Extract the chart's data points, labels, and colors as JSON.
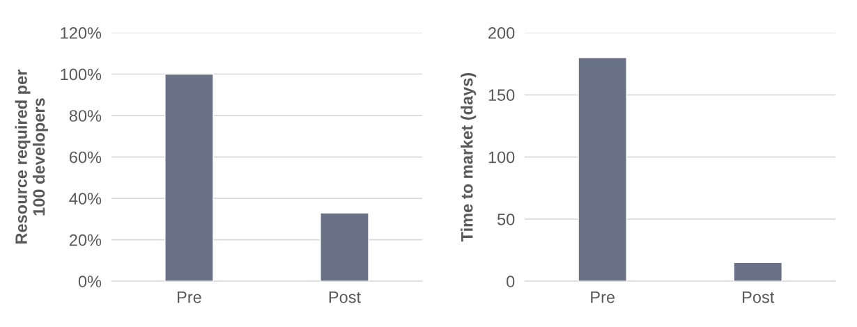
{
  "chart_data": [
    {
      "type": "bar",
      "ylabel": "Resource required per\n100 developers",
      "categories": [
        "Pre",
        "Post"
      ],
      "values": [
        100,
        33
      ],
      "color": "#687185",
      "ylim": [
        0,
        120
      ],
      "yticks": [
        {
          "value": 0,
          "label": "0%"
        },
        {
          "value": 20,
          "label": "20%"
        },
        {
          "value": 40,
          "label": "40%"
        },
        {
          "value": 60,
          "label": "60%"
        },
        {
          "value": 80,
          "label": "80%"
        },
        {
          "value": 100,
          "label": "100%"
        },
        {
          "value": 120,
          "label": "120%"
        }
      ],
      "grid": "y"
    },
    {
      "type": "bar",
      "ylabel": "Time to market (days)",
      "categories": [
        "Pre",
        "Post"
      ],
      "values": [
        180,
        15
      ],
      "color": "#687185",
      "ylim": [
        0,
        200
      ],
      "yticks": [
        0,
        50,
        100,
        150,
        200
      ],
      "grid": "y"
    }
  ]
}
